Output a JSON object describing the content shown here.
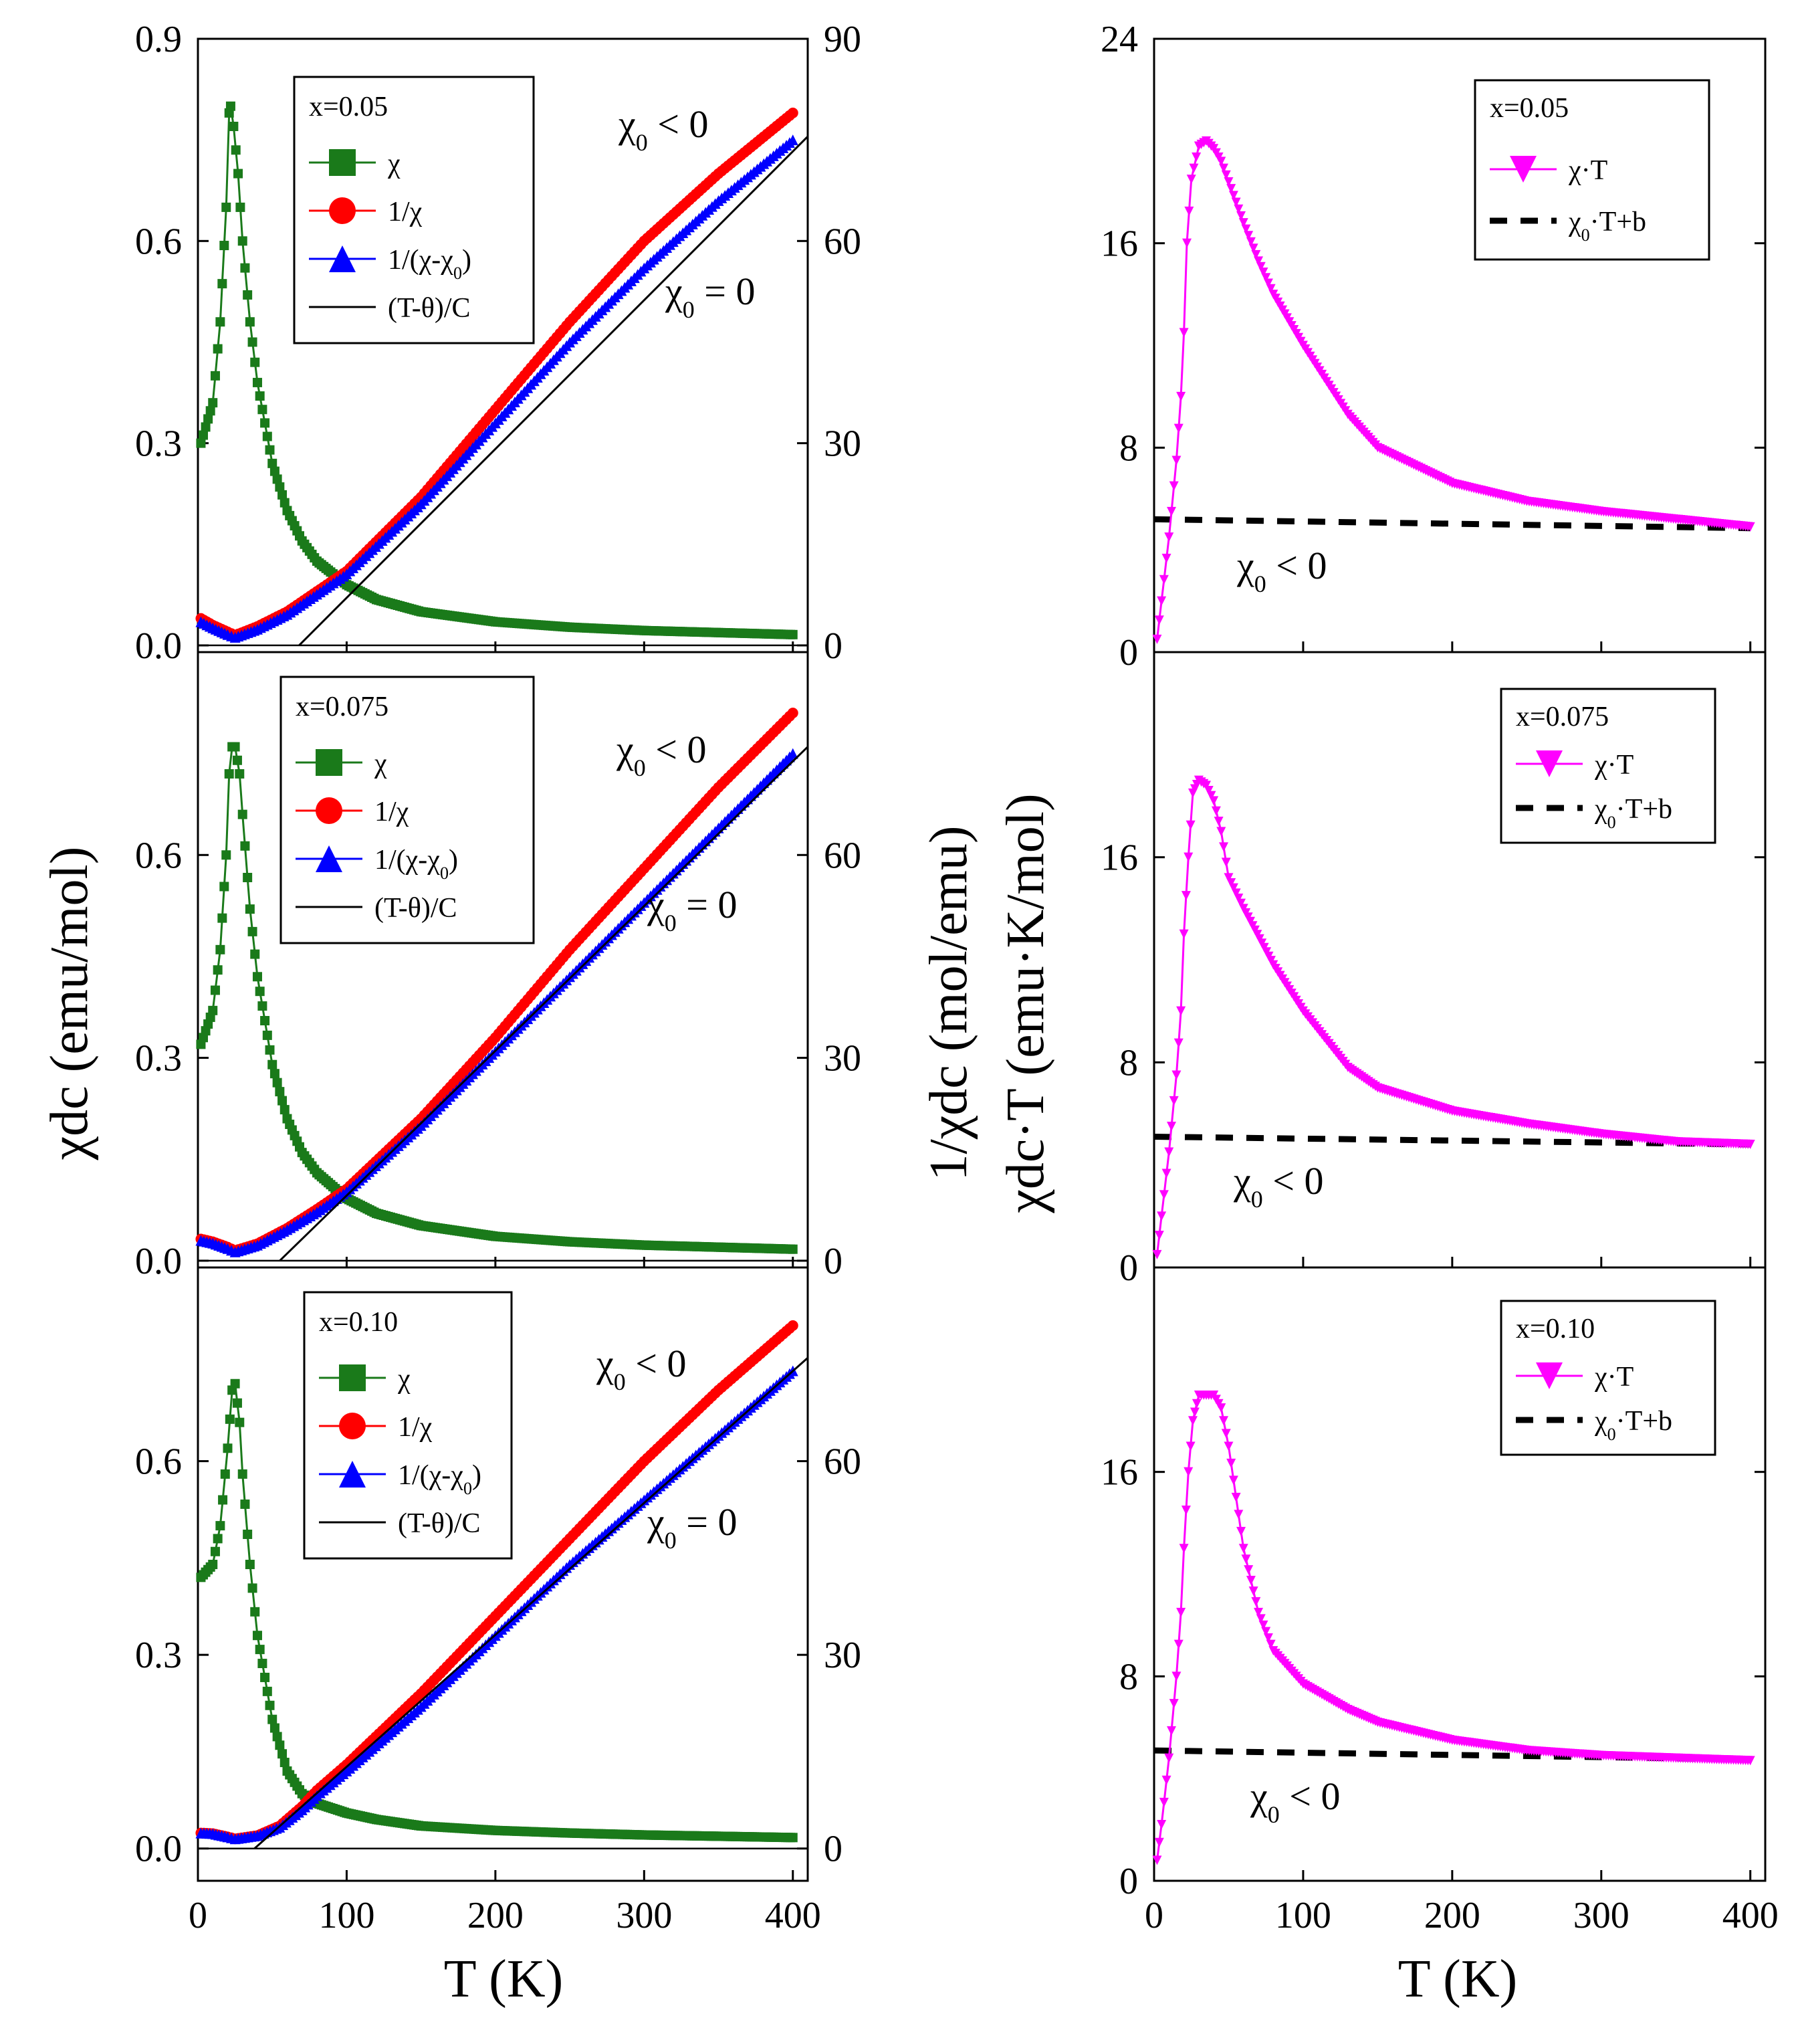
{
  "figure": {
    "left_ylabel": "χdc (emu/mol)",
    "right_ylabel_top": "1/χdc (mol/emu)",
    "right_ylabel_bottom": "χdc·T (emu·K/mol)",
    "left_xlabel": "T (K)",
    "right_xlabel": "T (K)"
  },
  "colors": {
    "chi": "#1a7a1a",
    "inv_chi": "#ff0000",
    "inv_chi_minus": "#0000ff",
    "curie_weiss": "#000000",
    "chiT": "#ff00ff",
    "fit": "#000000"
  },
  "chart_data": [
    {
      "type": "line",
      "panel": "left",
      "title": "x=0.05",
      "xlabel": "T (K)",
      "ylabel": "χdc (emu/mol)",
      "ylabel_right": "1/χdc (mol/emu)",
      "xlim": [
        0,
        410
      ],
      "ylim": [
        -0.01,
        0.9
      ],
      "ylim_right": [
        -1,
        90
      ],
      "xticks": [
        0,
        100,
        200,
        300,
        400
      ],
      "yticks": [
        0.0,
        0.3,
        0.6,
        0.9
      ],
      "yticks_right": [
        0,
        30,
        60,
        90
      ],
      "legend": [
        "χ",
        "1/χ",
        "1/(χ-χ0)",
        "(T-θ)/C"
      ],
      "annotations": [
        "χ0 < 0",
        "χ0 = 0"
      ],
      "series": [
        {
          "name": "χ",
          "axis": "left",
          "x": [
            2,
            10,
            15,
            19,
            21,
            22,
            24,
            27,
            30,
            35,
            40,
            50,
            60,
            70,
            80,
            100,
            120,
            150,
            200,
            250,
            300,
            350,
            400
          ],
          "y": [
            0.3,
            0.36,
            0.48,
            0.65,
            0.79,
            0.8,
            0.77,
            0.7,
            0.6,
            0.48,
            0.39,
            0.27,
            0.2,
            0.155,
            0.125,
            0.09,
            0.068,
            0.05,
            0.035,
            0.027,
            0.022,
            0.019,
            0.016
          ]
        },
        {
          "name": "1/χ",
          "axis": "right",
          "x": [
            2,
            10,
            20,
            25,
            40,
            60,
            80,
            100,
            150,
            200,
            250,
            300,
            350,
            400
          ],
          "y": [
            4,
            3,
            2,
            1.5,
            2.8,
            5,
            8,
            11,
            22,
            35,
            48,
            60,
            70,
            79
          ]
        },
        {
          "name": "1/(χ-χ0)",
          "axis": "right",
          "x": [
            2,
            10,
            20,
            25,
            40,
            60,
            80,
            100,
            150,
            200,
            250,
            300,
            350,
            400
          ],
          "y": [
            3.5,
            2.6,
            1.6,
            1.2,
            2.4,
            4.6,
            7.6,
            10.6,
            21,
            33,
            45,
            56,
            66,
            75
          ]
        },
        {
          "name": "(T-θ)/C",
          "axis": "right",
          "x": [
            68,
            410
          ],
          "y": [
            0,
            75.5
          ]
        }
      ],
      "labels": [
        {
          "text": "x=0.05"
        },
        {
          "text": "χ"
        },
        {
          "text": "1/χ"
        },
        {
          "text": "1/(χ-χ0)"
        },
        {
          "text": "(T-θ)/C"
        },
        {
          "text": "χ0 < 0"
        },
        {
          "text": "χ0 = 0"
        }
      ]
    },
    {
      "type": "line",
      "panel": "left",
      "title": "x=0.075",
      "xlabel": "T (K)",
      "ylabel": "χdc (emu/mol)",
      "ylabel_right": "1/χdc (mol/emu)",
      "xlim": [
        0,
        410
      ],
      "ylim": [
        -0.01,
        0.9
      ],
      "ylim_right": [
        -1,
        90
      ],
      "xticks": [
        0,
        100,
        200,
        300,
        400
      ],
      "yticks": [
        0.0,
        0.3,
        0.6
      ],
      "yticks_right": [
        0,
        30,
        60
      ],
      "legend": [
        "χ",
        "1/χ",
        "1/(χ-χ0)",
        "(T-θ)/C"
      ],
      "annotations": [
        "χ0 < 0",
        "χ0 = 0"
      ],
      "series": [
        {
          "name": "χ",
          "axis": "left",
          "x": [
            2,
            10,
            15,
            19,
            21,
            23,
            25,
            28,
            30,
            35,
            40,
            50,
            60,
            70,
            80,
            100,
            120,
            150,
            200,
            250,
            300,
            350,
            400
          ],
          "y": [
            0.32,
            0.37,
            0.46,
            0.6,
            0.72,
            0.76,
            0.76,
            0.72,
            0.66,
            0.52,
            0.42,
            0.29,
            0.21,
            0.16,
            0.13,
            0.092,
            0.07,
            0.052,
            0.036,
            0.028,
            0.023,
            0.02,
            0.017
          ]
        },
        {
          "name": "1/χ",
          "axis": "right",
          "x": [
            2,
            10,
            20,
            25,
            40,
            60,
            80,
            100,
            150,
            200,
            250,
            300,
            350,
            400
          ],
          "y": [
            3.2,
            2.8,
            2,
            1.5,
            2.5,
            4.8,
            7.6,
            10.6,
            21,
            33,
            46,
            58,
            70,
            81
          ]
        },
        {
          "name": "1/(χ-χ0)",
          "axis": "right",
          "x": [
            2,
            10,
            20,
            25,
            40,
            60,
            80,
            100,
            150,
            200,
            250,
            300,
            350,
            400
          ],
          "y": [
            3,
            2.6,
            1.8,
            1.3,
            2.3,
            4.6,
            7.2,
            10.2,
            20,
            31,
            42,
            53,
            64,
            75
          ]
        },
        {
          "name": "(T-θ)/C",
          "axis": "right",
          "x": [
            55,
            410
          ],
          "y": [
            0,
            76
          ]
        }
      ],
      "labels": [
        {
          "text": "x=0.075"
        },
        {
          "text": "χ"
        },
        {
          "text": "1/χ"
        },
        {
          "text": "1/(χ-χ0)"
        },
        {
          "text": "(T-θ)/C"
        },
        {
          "text": "χ0 < 0"
        },
        {
          "text": "χ0 = 0"
        }
      ]
    },
    {
      "type": "line",
      "panel": "left",
      "title": "x=0.10",
      "xlabel": "T (K)",
      "ylabel": "χdc (emu/mol)",
      "ylabel_right": "1/χdc (mol/emu)",
      "xlim": [
        0,
        410
      ],
      "ylim": [
        -0.05,
        0.9
      ],
      "ylim_right": [
        -5,
        90
      ],
      "xticks": [
        0,
        100,
        200,
        300,
        400
      ],
      "yticks": [
        0.0,
        0.3,
        0.6
      ],
      "yticks_right": [
        0,
        30,
        60
      ],
      "legend": [
        "χ",
        "1/χ",
        "1/(χ-χ0)",
        "(T-θ)/C"
      ],
      "annotations": [
        "χ0 < 0",
        "χ0 = 0"
      ],
      "series": [
        {
          "name": "χ",
          "axis": "left",
          "x": [
            2,
            10,
            15,
            20,
            23,
            25,
            28,
            30,
            35,
            40,
            50,
            60,
            70,
            80,
            100,
            120,
            150,
            200,
            250,
            300,
            350,
            400
          ],
          "y": [
            0.42,
            0.44,
            0.5,
            0.62,
            0.71,
            0.72,
            0.66,
            0.58,
            0.44,
            0.33,
            0.2,
            0.12,
            0.085,
            0.07,
            0.055,
            0.045,
            0.035,
            0.028,
            0.024,
            0.021,
            0.019,
            0.017
          ]
        },
        {
          "name": "1/χ",
          "axis": "right",
          "x": [
            2,
            10,
            20,
            25,
            40,
            55,
            70,
            80,
            100,
            150,
            200,
            250,
            300,
            350,
            400
          ],
          "y": [
            2.4,
            2.3,
            1.8,
            1.5,
            2,
            3.5,
            6.5,
            9,
            13,
            24,
            36,
            48,
            60,
            71,
            81
          ]
        },
        {
          "name": "1/(χ-χ0)",
          "axis": "right",
          "x": [
            2,
            10,
            20,
            25,
            40,
            55,
            70,
            80,
            100,
            150,
            200,
            250,
            300,
            350,
            400
          ],
          "y": [
            2.4,
            2.3,
            1.8,
            1.5,
            2,
            3.3,
            6,
            8.2,
            12,
            22,
            33,
            44,
            54,
            64,
            74
          ]
        },
        {
          "name": "(T-θ)/C",
          "axis": "right",
          "x": [
            38,
            410
          ],
          "y": [
            0,
            76
          ]
        }
      ],
      "labels": [
        {
          "text": "x=0.10"
        },
        {
          "text": "χ"
        },
        {
          "text": "1/χ"
        },
        {
          "text": "1/(χ-χ0)"
        },
        {
          "text": "(T-θ)/C"
        },
        {
          "text": "χ0 < 0"
        },
        {
          "text": "χ0 = 0"
        }
      ]
    },
    {
      "type": "line",
      "panel": "right",
      "title": "x=0.05",
      "xlabel": "T (K)",
      "ylabel": "χdc·T (emu·K/mol)",
      "xlim": [
        0,
        410
      ],
      "ylim": [
        0,
        24
      ],
      "xticks": [
        0,
        100,
        200,
        300,
        400
      ],
      "yticks": [
        0,
        8,
        16,
        24
      ],
      "legend": [
        "χ·T",
        "χ0·T+b"
      ],
      "annotations": [
        "χ0 < 0"
      ],
      "series": [
        {
          "name": "χ·T",
          "x": [
            2,
            5,
            10,
            15,
            18,
            20,
            22,
            25,
            30,
            35,
            40,
            45,
            50,
            60,
            70,
            80,
            100,
            130,
            150,
            200,
            250,
            300,
            350,
            400
          ],
          "y": [
            0.5,
            2,
            4.5,
            7.5,
            10,
            12.5,
            16,
            18.5,
            19.8,
            20,
            19.7,
            19.2,
            18.4,
            16.8,
            15.3,
            14,
            12,
            9.3,
            8,
            6.6,
            5.9,
            5.5,
            5.2,
            4.9
          ]
        },
        {
          "name": "χ0·T+b",
          "x": [
            0,
            400
          ],
          "y": [
            5.2,
            4.85
          ]
        }
      ],
      "labels": [
        {
          "text": "x=0.05"
        },
        {
          "text": "χ·T"
        },
        {
          "text": "χ0·T+b"
        },
        {
          "text": "χ0 < 0"
        }
      ]
    },
    {
      "type": "line",
      "panel": "right",
      "title": "x=0.075",
      "xlabel": "T (K)",
      "ylabel": "χdc·T (emu·K/mol)",
      "xlim": [
        0,
        410
      ],
      "ylim": [
        0,
        24
      ],
      "xticks": [
        0,
        100,
        200,
        300,
        400
      ],
      "yticks": [
        0,
        8,
        16
      ],
      "legend": [
        "χ·T",
        "χ0·T+b"
      ],
      "annotations": [
        "χ0 < 0"
      ],
      "series": [
        {
          "name": "χ·T",
          "x": [
            2,
            5,
            10,
            15,
            18,
            20,
            23,
            26,
            30,
            35,
            40,
            45,
            50,
            60,
            80,
            100,
            130,
            150,
            200,
            250,
            300,
            350,
            400
          ],
          "y": [
            0.5,
            2,
            4.5,
            7.5,
            10,
            13,
            16,
            18.5,
            19,
            18.8,
            18.2,
            17,
            15.2,
            14,
            11.8,
            10,
            7.8,
            7,
            6.1,
            5.6,
            5.2,
            4.9,
            4.8
          ]
        },
        {
          "name": "χ0·T+b",
          "x": [
            0,
            400
          ],
          "y": [
            5.1,
            4.8
          ]
        }
      ],
      "labels": [
        {
          "text": "x=0.075"
        },
        {
          "text": "χ·T"
        },
        {
          "text": "χ0·T+b"
        },
        {
          "text": "χ0 < 0"
        }
      ]
    },
    {
      "type": "line",
      "panel": "right",
      "title": "x=0.10",
      "xlabel": "T (K)",
      "ylabel": "χdc·T (emu·K/mol)",
      "xlim": [
        0,
        410
      ],
      "ylim": [
        0,
        24
      ],
      "xticks": [
        0,
        100,
        200,
        300,
        400
      ],
      "yticks": [
        0,
        8,
        16
      ],
      "legend": [
        "χ·T",
        "χ0·T+b"
      ],
      "annotations": [
        "χ0 < 0"
      ],
      "series": [
        {
          "name": "χ·T",
          "x": [
            2,
            5,
            10,
            15,
            18,
            20,
            23,
            26,
            30,
            35,
            40,
            45,
            50,
            55,
            60,
            70,
            80,
            100,
            130,
            150,
            200,
            250,
            300,
            350,
            400
          ],
          "y": [
            0.8,
            2.2,
            4.8,
            8,
            10.5,
            13,
            16,
            18,
            19,
            19,
            19,
            18.5,
            17,
            15,
            13,
            10.5,
            9,
            7.7,
            6.7,
            6.2,
            5.5,
            5.1,
            4.9,
            4.8,
            4.7
          ]
        },
        {
          "name": "χ0·T+b",
          "x": [
            0,
            400
          ],
          "y": [
            5.1,
            4.75
          ]
        }
      ],
      "labels": [
        {
          "text": "x=0.10"
        },
        {
          "text": "χ·T"
        },
        {
          "text": "χ0·T+b"
        },
        {
          "text": "χ0 < 0"
        }
      ]
    }
  ]
}
